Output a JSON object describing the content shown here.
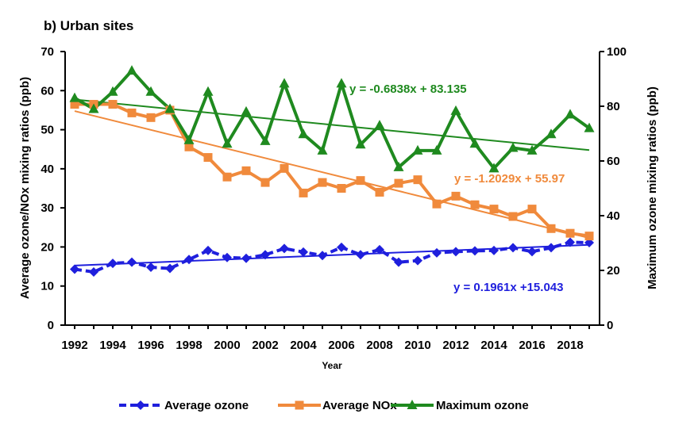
{
  "chart_data": {
    "type": "line",
    "title": "b) Urban sites",
    "xlabel": "Year",
    "ylabel": "Average ozone/NOx mixing ratios  (ppb)",
    "y2label": "Maximum ozone mixing ratios (ppb)",
    "xlim": [
      1992,
      2019
    ],
    "ylim": [
      0,
      70
    ],
    "y2lim": [
      0,
      100
    ],
    "x_ticks": [
      "1992",
      "1994",
      "1996",
      "1998",
      "2000",
      "2002",
      "2004",
      "2006",
      "2008",
      "2010",
      "2012",
      "2014",
      "2016",
      "2018"
    ],
    "y_ticks": [
      "0",
      "10",
      "20",
      "30",
      "40",
      "50",
      "60",
      "70"
    ],
    "y2_ticks": [
      "0",
      "20",
      "40",
      "60",
      "80",
      "100"
    ],
    "grid": false,
    "legend_position": "bottom",
    "x": [
      1992,
      1993,
      1994,
      1995,
      1996,
      1997,
      1998,
      1999,
      2000,
      2001,
      2002,
      2003,
      2004,
      2005,
      2006,
      2007,
      2008,
      2009,
      2010,
      2011,
      2012,
      2013,
      2014,
      2015,
      2016,
      2017,
      2018,
      2019
    ],
    "series": [
      {
        "name": "Average ozone",
        "axis": "left",
        "color": "#1f1fdd",
        "marker": "diamond",
        "dash": true,
        "values": [
          14.3,
          13.6,
          15.8,
          16.1,
          14.8,
          14.5,
          16.8,
          19.1,
          17.3,
          17.1,
          18.0,
          19.6,
          18.7,
          17.8,
          19.9,
          18.0,
          19.3,
          16.1,
          16.5,
          18.5,
          18.8,
          19.0,
          19.1,
          19.8,
          18.8,
          19.8,
          21.2,
          21.1
        ],
        "trend": {
          "slope": 0.1961,
          "intercept": 15.043,
          "equation": "y = 0.1961x +15.043"
        }
      },
      {
        "name": "Average NOx",
        "axis": "left",
        "color": "#f08a3c",
        "marker": "square",
        "dash": false,
        "values": [
          56.5,
          56.5,
          56.5,
          54.3,
          53.1,
          55.0,
          45.6,
          42.9,
          37.9,
          39.5,
          36.5,
          40.1,
          33.8,
          36.5,
          35.0,
          37.0,
          34.0,
          36.3,
          37.2,
          31.0,
          33.0,
          30.8,
          29.7,
          27.8,
          29.7,
          24.7,
          23.5,
          22.8
        ],
        "trend": {
          "slope": -1.2029,
          "intercept": 55.97,
          "equation": "y = -1.2029x + 55.97"
        }
      },
      {
        "name": "Maximum ozone",
        "axis": "right",
        "color": "#1f8a1f",
        "marker": "triangle",
        "dash": false,
        "values": [
          83.0,
          79.0,
          85.3,
          93.0,
          85.3,
          79.0,
          67.6,
          85.3,
          66.3,
          78.0,
          67.3,
          88.3,
          69.8,
          63.8,
          88.3,
          66.0,
          73.0,
          57.7,
          63.8,
          63.8,
          78.3,
          66.3,
          57.3,
          64.8,
          63.8,
          69.8,
          77.0,
          72.0
        ],
        "trend": {
          "slope": -0.6838,
          "intercept": 83.135,
          "equation": "y = -0.6838x + 83.135"
        }
      }
    ]
  }
}
